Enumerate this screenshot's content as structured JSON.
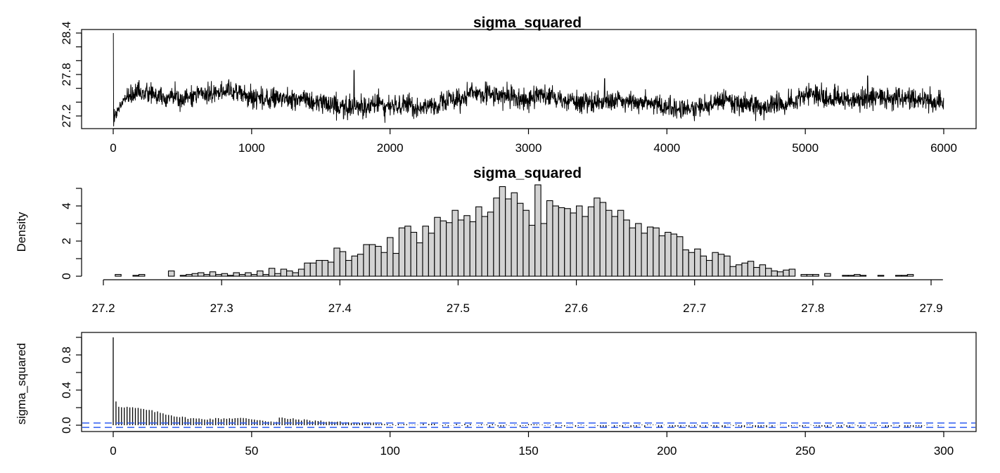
{
  "chart_data": [
    {
      "type": "line",
      "title": "sigma_squared",
      "xlabel": "",
      "ylabel": "",
      "x_range": [
        1,
        6000
      ],
      "xlim": [
        0,
        6000
      ],
      "ylim": [
        27.0,
        28.4
      ],
      "x_ticks": [
        0,
        1000,
        2000,
        3000,
        4000,
        5000,
        6000
      ],
      "y_ticks": [
        27.2,
        27.8,
        28.4
      ],
      "initial_values": [
        28.4,
        27.05,
        27.15,
        27.3
      ],
      "typical_level": 27.45,
      "typical_band": [
        27.2,
        27.7
      ],
      "peak_points": [
        {
          "x": 1740,
          "y": 27.86
        },
        {
          "x": 5450,
          "y": 27.78
        },
        {
          "x": 3550,
          "y": 27.74
        }
      ],
      "grid": false
    },
    {
      "type": "bar",
      "title": "sigma_squared",
      "xlabel": "",
      "ylabel": "Density",
      "xlim": [
        27.21,
        27.91
      ],
      "ylim": [
        0,
        5
      ],
      "x_ticks": [
        27.2,
        27.3,
        27.4,
        27.5,
        27.6,
        27.7,
        27.8,
        27.9
      ],
      "y_ticks": [
        0,
        2,
        4
      ],
      "bin_start": 27.21,
      "bin_width": 0.005,
      "values": [
        0.1,
        0,
        0,
        0.05,
        0.1,
        0,
        0,
        0,
        0,
        0.3,
        0,
        0.05,
        0.1,
        0.15,
        0.2,
        0.1,
        0.25,
        0.1,
        0.15,
        0.05,
        0.2,
        0.1,
        0.2,
        0.1,
        0.3,
        0.1,
        0.45,
        0.15,
        0.4,
        0.3,
        0.2,
        0.4,
        0.75,
        0.75,
        0.9,
        0.9,
        0.8,
        1.6,
        1.4,
        0.9,
        1.15,
        1.25,
        1.8,
        1.8,
        1.7,
        1.35,
        2.2,
        1.3,
        2.75,
        2.85,
        2.5,
        1.9,
        2.85,
        2.45,
        3.35,
        3.15,
        3.05,
        3.75,
        3.2,
        3.45,
        3.1,
        3.95,
        3.4,
        3.65,
        4.45,
        5.1,
        4.4,
        4.75,
        4.15,
        3.75,
        2.9,
        5.2,
        3,
        4.3,
        4,
        3.9,
        3.85,
        3.6,
        4,
        3.4,
        3.95,
        4.45,
        4.2,
        3.75,
        3.4,
        3.75,
        3.2,
        2.75,
        3,
        2.45,
        2.8,
        2.75,
        2.3,
        2.5,
        2.4,
        2.25,
        1.5,
        1.35,
        1.55,
        1.15,
        0.9,
        1.35,
        1.25,
        1.15,
        0.55,
        0.65,
        0.75,
        0.85,
        0.5,
        0.65,
        0.45,
        0.3,
        0.25,
        0.35,
        0.4,
        0,
        0.1,
        0.1,
        0.1,
        0,
        0.15,
        0,
        0,
        0.05,
        0.05,
        0.1,
        0.05,
        0,
        0,
        0.05,
        0,
        0,
        0.05,
        0.05,
        0.1
      ],
      "grid": false
    },
    {
      "type": "bar",
      "title": "",
      "xlabel": "",
      "ylabel": "sigma_squared",
      "xlim": [
        0,
        300
      ],
      "ylim": [
        0,
        1
      ],
      "x_ticks": [
        0,
        50,
        100,
        150,
        200,
        250,
        300
      ],
      "y_ticks": [
        0.0,
        0.4,
        0.8
      ],
      "y_tick_labels": [
        "0.0",
        "0.4",
        "0.8"
      ],
      "lag_max": 300,
      "acf_at_lag_0": 1.0,
      "acf_at_lag_1": 0.27,
      "confidence_band": [
        -0.025,
        0.025
      ],
      "colors": {
        "confidence_line": "#2f5cf0"
      },
      "grid": false
    }
  ]
}
